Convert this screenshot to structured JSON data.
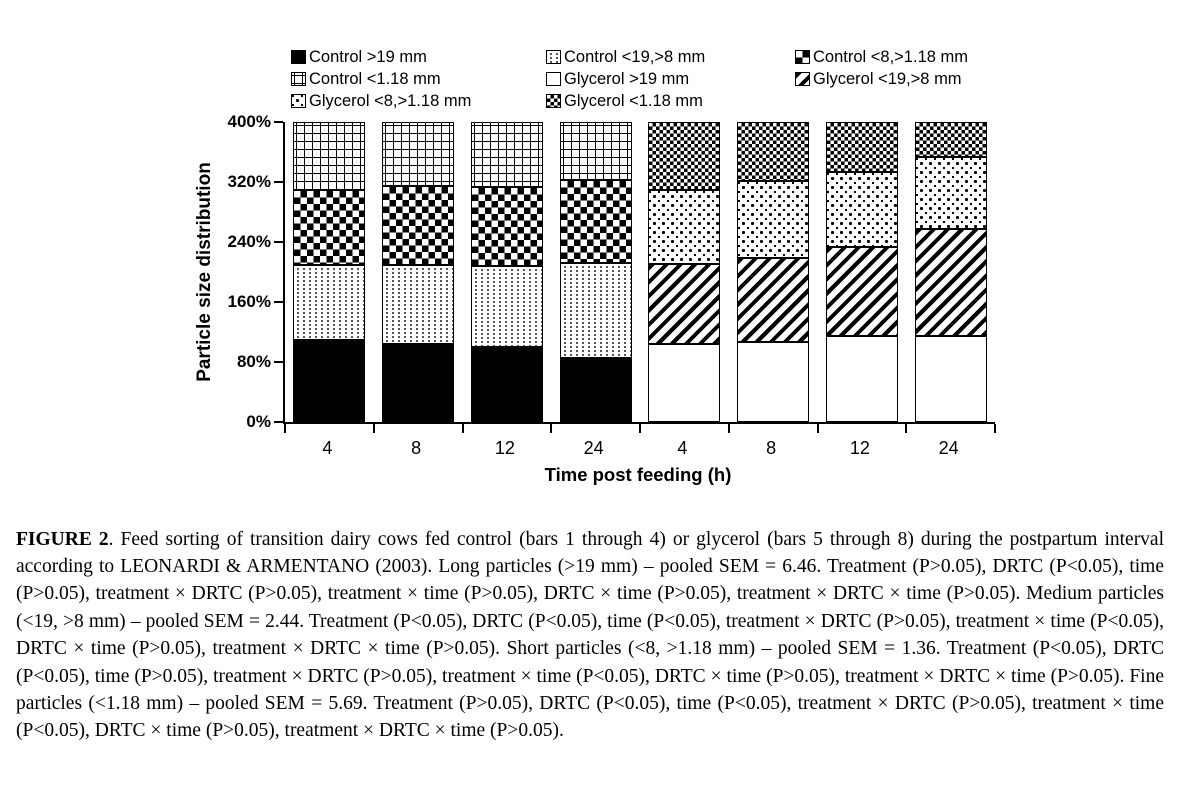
{
  "figure": {
    "label": "FIGURE 2",
    "caption": ". Feed sorting of transition dairy cows fed control (bars 1 through 4) or glycerol (bars 5 through 8) during the postpartum interval according to LEONARDI & ARMENTANO (2003). Long particles (>19 mm) – pooled SEM = 6.46. Treatment (P>0.05), DRTC (P<0.05), time (P>0.05), treatment × DRTC (P>0.05), treatment × time (P>0.05), DRTC × time (P>0.05), treatment × DRTC × time (P>0.05). Medium particles (<19, >8 mm) – pooled SEM = 2.44. Treatment (P<0.05), DRTC (P<0.05), time (P<0.05), treatment × DRTC (P>0.05), treatment × time (P<0.05), DRTC × time (P>0.05), treatment × DRTC × time (P>0.05). Short particles (<8, >1.18 mm) – pooled SEM = 1.36. Treatment (P<0.05), DRTC (P<0.05), time (P>0.05), treatment × DRTC (P>0.05), treatment × time (P<0.05), DRTC × time (P>0.05), treatment × DRTC × time (P>0.05). Fine particles (<1.18 mm) – pooled SEM = 5.69. Treatment (P>0.05), DRTC (P<0.05), time (P<0.05), treatment × DRTC (P>0.05), treatment × time (P<0.05), DRTC × time (P>0.05), treatment × DRTC × time (P>0.05)."
  },
  "chart_data": {
    "type": "bar",
    "subtype": "stacked-100x4",
    "title": "",
    "xlabel": "Time post feeding (h)",
    "ylabel": "Particle size distribution",
    "ylim": [
      0,
      400
    ],
    "y_tick_labels": [
      "0%",
      "80%",
      "160%",
      "240%",
      "320%",
      "400%"
    ],
    "grid": false,
    "legend_position": "top, 3 columns",
    "categories": [
      "4",
      "8",
      "12",
      "24",
      "4",
      "8",
      "12",
      "24"
    ],
    "category_groups": [
      "Control bars 1-4",
      "Glycerol bars 5-8"
    ],
    "series": [
      {
        "label": "Control >19 mm",
        "pattern": "solid",
        "values": [
          109,
          104,
          100,
          85,
          null,
          null,
          null,
          null
        ]
      },
      {
        "label": "Control <19,>8 mm",
        "pattern": "dots",
        "values": [
          101,
          106,
          108,
          127,
          null,
          null,
          null,
          null
        ]
      },
      {
        "label": "Control <8,>1.18 mm",
        "pattern": "checker",
        "values": [
          99,
          105,
          106,
          111,
          null,
          null,
          null,
          null
        ]
      },
      {
        "label": "Control <1.18 mm",
        "pattern": "grid",
        "values": [
          91,
          85,
          86,
          77,
          null,
          null,
          null,
          null
        ]
      },
      {
        "label": "Glycerol >19 mm",
        "pattern": "white",
        "values": [
          null,
          null,
          null,
          null,
          104,
          107,
          115,
          115
        ]
      },
      {
        "label": "Glycerol <19,>8 mm",
        "pattern": "diag",
        "values": [
          null,
          null,
          null,
          null,
          107,
          112,
          118,
          143
        ]
      },
      {
        "label": "Glycerol <8,>1.18 mm",
        "pattern": "sparsedots",
        "values": [
          null,
          null,
          null,
          null,
          99,
          102,
          100,
          95
        ]
      },
      {
        "label": "Glycerol <1.18 mm",
        "pattern": "densechecker",
        "values": [
          null,
          null,
          null,
          null,
          90,
          79,
          67,
          47
        ]
      }
    ]
  }
}
